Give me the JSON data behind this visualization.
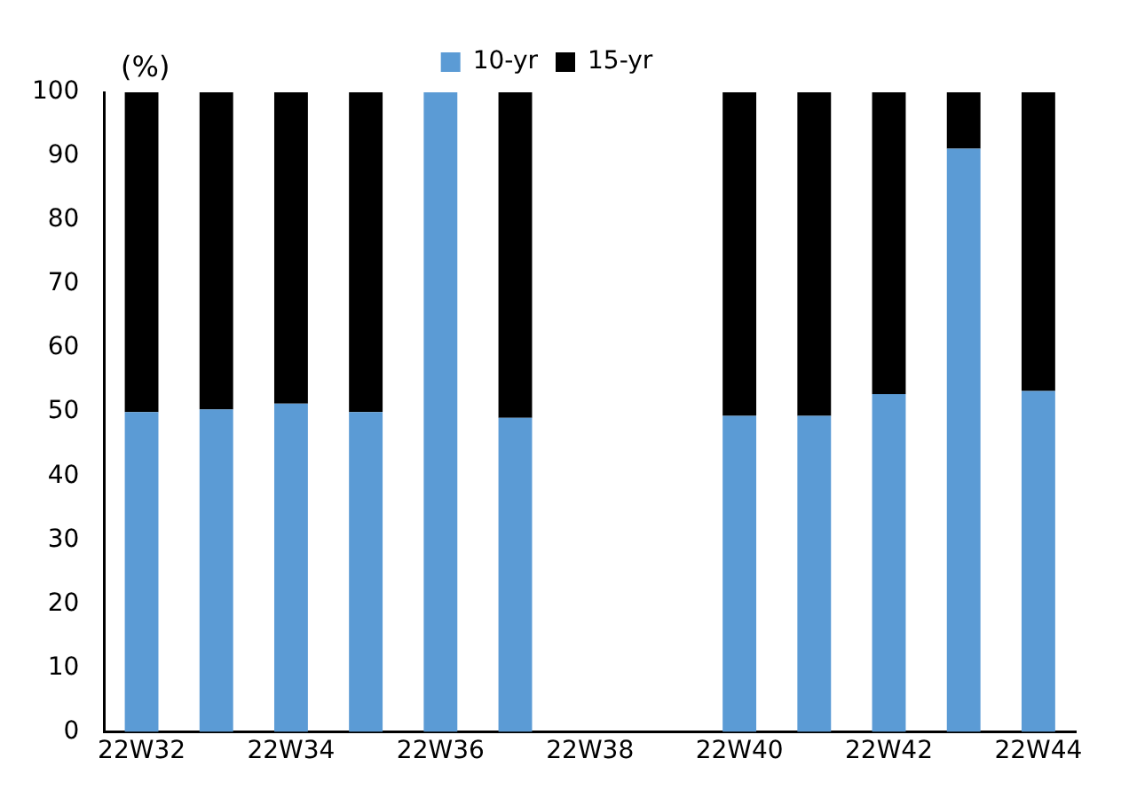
{
  "chart_data": {
    "type": "bar",
    "stacked": true,
    "ylabel": "(%)",
    "categories": [
      "22W32",
      null,
      "22W34",
      null,
      "22W36",
      null,
      "22W38",
      null,
      "22W40",
      null,
      "22W42",
      null,
      "22W44"
    ],
    "series": [
      {
        "name": "10-yr",
        "color": "#5b9bd5",
        "values": [
          50,
          50.4,
          51.3,
          50,
          100,
          49.1,
          null,
          null,
          49.4,
          49.4,
          52.8,
          91.2,
          53.3
        ]
      },
      {
        "name": "15-yr",
        "color": "#000000",
        "values": [
          50,
          49.6,
          48.7,
          50,
          0,
          50.9,
          null,
          null,
          50.6,
          50.6,
          47.2,
          8.8,
          46.7
        ]
      }
    ],
    "ylim": [
      0,
      100
    ],
    "yticks": [
      0,
      10,
      20,
      30,
      40,
      50,
      60,
      70,
      80,
      90,
      100
    ],
    "grid": false,
    "legend": "top"
  }
}
